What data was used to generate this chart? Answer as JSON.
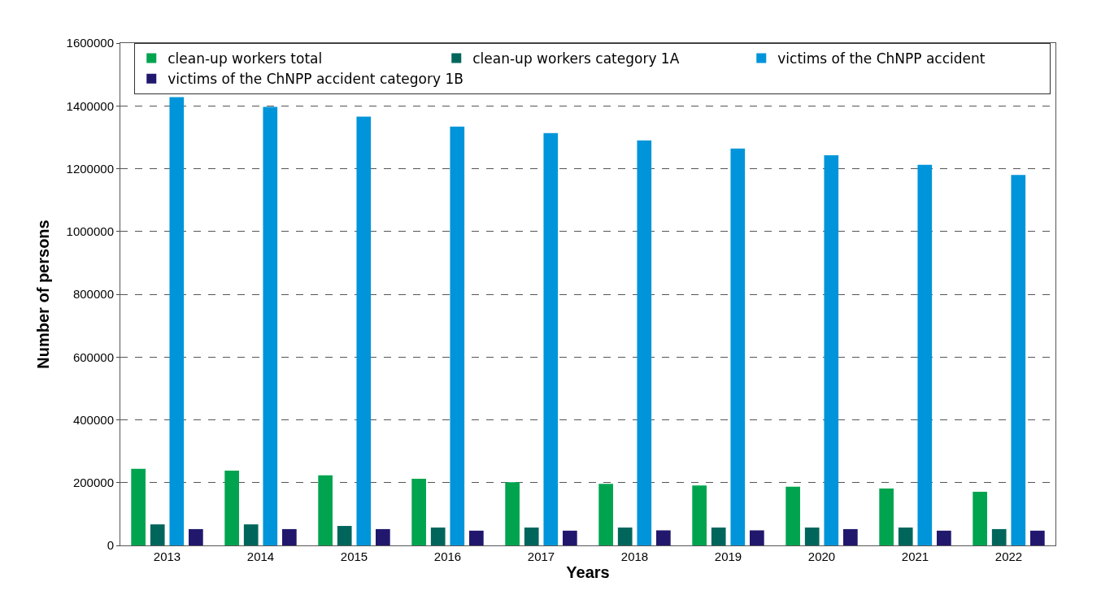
{
  "chart_data": {
    "type": "bar",
    "xlabel": "Years",
    "ylabel": "Number of persons",
    "categories": [
      "2013",
      "2014",
      "2015",
      "2016",
      "2017",
      "2018",
      "2019",
      "2020",
      "2021",
      "2022"
    ],
    "series": [
      {
        "name": "clean-up workers total",
        "color": "#00a44f",
        "values": [
          244000,
          238000,
          223000,
          212000,
          201000,
          196000,
          191000,
          187000,
          181000,
          171000
        ]
      },
      {
        "name": "clean-up workers category 1A",
        "color": "#00665c",
        "values": [
          67000,
          67000,
          62000,
          57000,
          57000,
          57000,
          57000,
          57000,
          57000,
          52000
        ]
      },
      {
        "name": "victims of the ChNPP accident",
        "color": "#0095da",
        "values": [
          1428000,
          1397000,
          1366000,
          1334000,
          1313000,
          1290000,
          1264000,
          1243000,
          1212000,
          1180000
        ]
      },
      {
        "name": "victims of the ChNPP accident category 1B",
        "color": "#21186e",
        "values": [
          52000,
          52000,
          52000,
          47000,
          47000,
          48000,
          48000,
          52000,
          47000,
          47000
        ]
      }
    ],
    "ylim": [
      0,
      1600000
    ],
    "yticks": [
      0,
      200000,
      400000,
      600000,
      800000,
      1000000,
      1200000,
      1400000,
      1600000
    ],
    "grid": "y",
    "legend": "top right"
  }
}
